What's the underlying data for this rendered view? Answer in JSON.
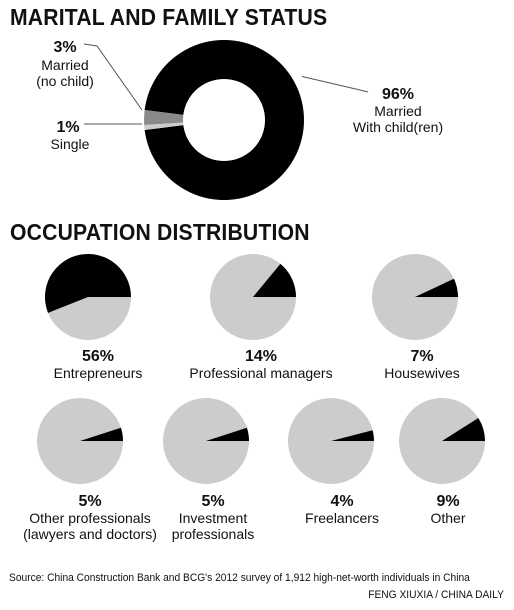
{
  "colors": {
    "dark": "#000000",
    "light": "#cccccc",
    "mid": "#8a8a8a",
    "text": "#111111"
  },
  "sections": {
    "marital_title": "MARITAL AND FAMILY STATUS",
    "occupation_title": "OCCUPATION DISTRIBUTION"
  },
  "chart_data": [
    {
      "type": "pie",
      "title": "MARITAL AND FAMILY STATUS",
      "slices": [
        {
          "percent": "96%",
          "value": 96,
          "label_lines": [
            "Married",
            "With child(ren)"
          ],
          "color": "#000000"
        },
        {
          "percent": "3%",
          "value": 3,
          "label_lines": [
            "Married",
            "(no child)"
          ],
          "color": "#8a8a8a"
        },
        {
          "percent": "1%",
          "value": 1,
          "label_lines": [
            "Single"
          ],
          "color": "#cccccc"
        }
      ]
    },
    {
      "type": "pie",
      "title": "OCCUPATION DISTRIBUTION",
      "slices": [
        {
          "percent": "56%",
          "value": 56,
          "label_lines": [
            "Entrepreneurs"
          ]
        },
        {
          "percent": "14%",
          "value": 14,
          "label_lines": [
            "Professional managers"
          ]
        },
        {
          "percent": "7%",
          "value": 7,
          "label_lines": [
            "Housewives"
          ]
        },
        {
          "percent": "5%",
          "value": 5,
          "label_lines": [
            "Other professionals",
            "(lawyers and doctors)"
          ]
        },
        {
          "percent": "5%",
          "value": 5,
          "label_lines": [
            "Investment",
            "professionals"
          ]
        },
        {
          "percent": "4%",
          "value": 4,
          "label_lines": [
            "Freelancers"
          ]
        },
        {
          "percent": "9%",
          "value": 9,
          "label_lines": [
            "Other"
          ]
        }
      ]
    }
  ],
  "footer": {
    "source": "Source: China Construction Bank and BCG's 2012 survey of 1,912 high-net-worth individuals in China",
    "credit": "FENG XIUXIA / CHINA DAILY"
  }
}
